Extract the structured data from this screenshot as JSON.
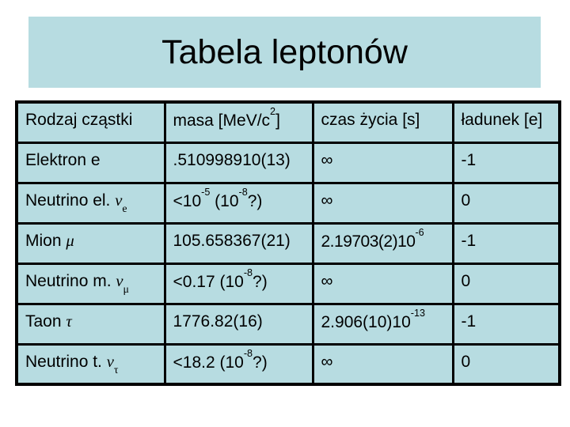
{
  "colors": {
    "panel": "#b7dce1",
    "border": "#000000",
    "text": "#000000",
    "page": "#ffffff"
  },
  "title": {
    "text": "Tabela leptonów"
  },
  "table": {
    "headers": [
      {
        "text": "Rodzaj cząstki",
        "segments": [
          {
            "t": "Rodzaj cząstki"
          }
        ]
      },
      {
        "text": "masa [MeV/c2]",
        "segments": [
          {
            "t": "masa [MeV/c"
          },
          {
            "sup": "2"
          },
          {
            "t": "]"
          }
        ]
      },
      {
        "text": "czas życia [s]",
        "segments": [
          {
            "t": "czas życia [s]"
          }
        ]
      },
      {
        "text": "ładunek [e]",
        "segments": [
          {
            "t": "ładunek [e]"
          }
        ]
      }
    ],
    "rows": [
      {
        "cells": [
          {
            "text": "Elektron e",
            "segments": [
              {
                "t": "Elektron e"
              }
            ]
          },
          {
            "text": ".510998910(13)",
            "segments": [
              {
                "t": ".510998910(13)"
              }
            ]
          },
          {
            "text": "∞",
            "segments": [
              {
                "t": "∞"
              }
            ]
          },
          {
            "text": "-1",
            "segments": [
              {
                "t": "-1"
              }
            ]
          }
        ]
      },
      {
        "cells": [
          {
            "text": "Neutrino el. νe",
            "segments": [
              {
                "t": "Neutrino el. "
              },
              {
                "greek": "ν"
              },
              {
                "sub": "e"
              }
            ]
          },
          {
            "text": "<10-5 (10-8?)",
            "segments": [
              {
                "t": "<10"
              },
              {
                "sup": "-5"
              },
              {
                "t": " (10"
              },
              {
                "sup": "-8"
              },
              {
                "t": "?)"
              }
            ]
          },
          {
            "text": "∞",
            "segments": [
              {
                "t": "∞"
              }
            ]
          },
          {
            "text": "0",
            "segments": [
              {
                "t": "0"
              }
            ]
          }
        ]
      },
      {
        "cells": [
          {
            "text": "Mion μ",
            "segments": [
              {
                "t": "Mion "
              },
              {
                "greek": "μ"
              }
            ]
          },
          {
            "text": "105.658367(21)",
            "segments": [
              {
                "t": "105.658367(21)"
              }
            ]
          },
          {
            "text": "2.19703(2)10-6",
            "segments": [
              {
                "t": "2.19703(2)10"
              },
              {
                "sup": "-6"
              }
            ]
          },
          {
            "text": "-1",
            "segments": [
              {
                "t": "-1"
              }
            ]
          }
        ]
      },
      {
        "cells": [
          {
            "text": "Neutrino m. νμ",
            "segments": [
              {
                "t": "Neutrino m. "
              },
              {
                "greek": "ν"
              },
              {
                "sub": "μ"
              }
            ]
          },
          {
            "text": "<0.17 (10-8?)",
            "segments": [
              {
                "t": "<0.17 (10"
              },
              {
                "sup": "-8"
              },
              {
                "t": "?)"
              }
            ]
          },
          {
            "text": "∞",
            "segments": [
              {
                "t": "∞"
              }
            ]
          },
          {
            "text": "0",
            "segments": [
              {
                "t": "0"
              }
            ]
          }
        ]
      },
      {
        "cells": [
          {
            "text": "Taon τ",
            "segments": [
              {
                "t": "Taon "
              },
              {
                "greek": "τ"
              }
            ]
          },
          {
            "text": "1776.82(16)",
            "segments": [
              {
                "t": "1776.82(16)"
              }
            ]
          },
          {
            "text": "2.906(10)10-13",
            "segments": [
              {
                "t": "2.906(10)10"
              },
              {
                "sup": "-13"
              }
            ]
          },
          {
            "text": "-1",
            "segments": [
              {
                "t": "-1"
              }
            ]
          }
        ]
      },
      {
        "cells": [
          {
            "text": "Neutrino t. ντ",
            "segments": [
              {
                "t": "Neutrino t. "
              },
              {
                "greek": "ν"
              },
              {
                "sub": "τ"
              }
            ]
          },
          {
            "text": "<18.2 (10-8?)",
            "segments": [
              {
                "t": "<18.2 (10"
              },
              {
                "sup": "-8"
              },
              {
                "t": "?)"
              }
            ]
          },
          {
            "text": "∞",
            "segments": [
              {
                "t": "∞"
              }
            ]
          },
          {
            "text": "0",
            "segments": [
              {
                "t": "0"
              }
            ]
          }
        ]
      }
    ]
  }
}
